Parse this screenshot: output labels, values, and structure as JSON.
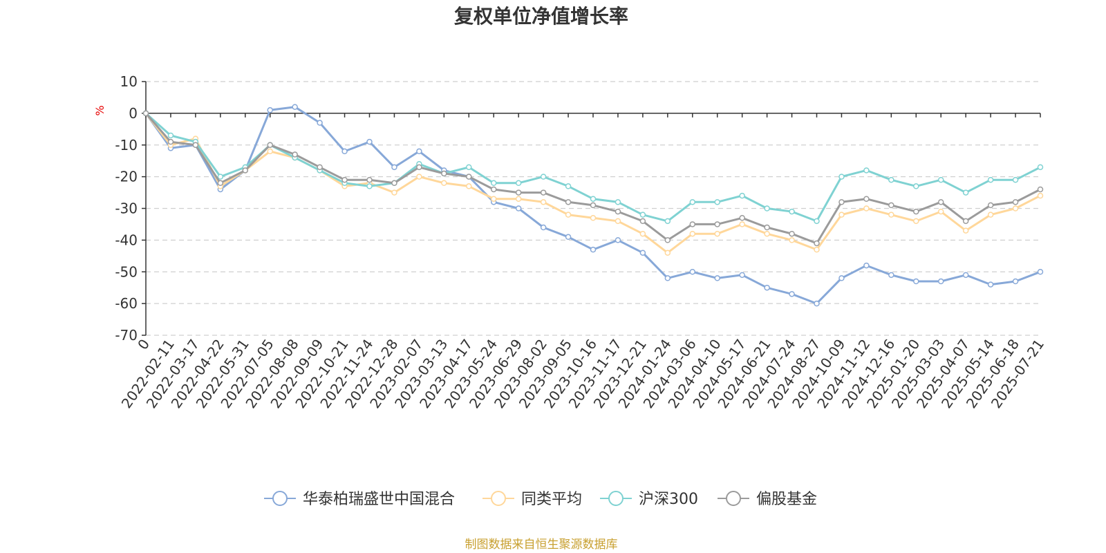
{
  "chart_data": {
    "type": "line",
    "title": "复权单位净值增长率",
    "y_unit": "%",
    "ylim": [
      -70,
      10
    ],
    "y_ticks": [
      10,
      0,
      -10,
      -20,
      -30,
      -40,
      -50,
      -60,
      -70
    ],
    "grid": "horizontal dashed",
    "legend_position": "bottom",
    "x_labels": [
      "0",
      "2022-02-11",
      "2022-03-17",
      "2022-04-22",
      "2022-05-31",
      "2022-07-05",
      "2022-08-08",
      "2022-09-09",
      "2022-10-21",
      "2022-11-24",
      "2022-12-28",
      "2023-02-07",
      "2023-03-13",
      "2023-04-17",
      "2023-05-24",
      "2023-06-29",
      "2023-08-02",
      "2023-09-05",
      "2023-10-16",
      "2023-11-17",
      "2023-12-21",
      "2024-01-24",
      "2024-03-06",
      "2024-04-10",
      "2024-05-17",
      "2024-06-21",
      "2024-07-24",
      "2024-08-27",
      "2024-10-09",
      "2024-11-12",
      "2024-12-16",
      "2025-01-20",
      "2025-03-03",
      "2025-04-07",
      "2025-05-14",
      "2025-06-18",
      "2025-07-21"
    ],
    "series": [
      {
        "name": "华泰柏瑞盛世中国混合",
        "color": "#87a8d8",
        "values": [
          0,
          -11,
          -10,
          -24,
          -18,
          1,
          2,
          -3,
          -12,
          -9,
          -17,
          -12,
          -18,
          -20,
          -28,
          -30,
          -36,
          -39,
          -43,
          -40,
          -44,
          -52,
          -50,
          -52,
          -51,
          -55,
          -57,
          -60,
          -52,
          -48,
          -51,
          -53,
          -53,
          -51,
          -54,
          -53,
          -50
        ]
      },
      {
        "name": "同类平均",
        "color": "#ffd79a",
        "values": [
          0,
          -10,
          -8,
          -23,
          -18,
          -12,
          -14,
          -18,
          -23,
          -22,
          -25,
          -20,
          -22,
          -23,
          -27,
          -27,
          -28,
          -32,
          -33,
          -34,
          -38,
          -44,
          -38,
          -38,
          -35,
          -38,
          -40,
          -43,
          -32,
          -30,
          -32,
          -34,
          -31,
          -37,
          -32,
          -30,
          -26
        ]
      },
      {
        "name": "沪深300",
        "color": "#7fd2d2",
        "values": [
          0,
          -7,
          -9,
          -20,
          -17,
          -10,
          -14,
          -18,
          -22,
          -23,
          -22,
          -16,
          -19,
          -17,
          -22,
          -22,
          -20,
          -23,
          -27,
          -28,
          -32,
          -34,
          -28,
          -28,
          -26,
          -30,
          -31,
          -34,
          -20,
          -18,
          -21,
          -23,
          -21,
          -25,
          -21,
          -21,
          -17
        ]
      },
      {
        "name": "偏股基金",
        "color": "#9b9b9b",
        "values": [
          0,
          -9,
          -10,
          -22,
          -18,
          -10,
          -13,
          -17,
          -21,
          -21,
          -22,
          -17,
          -19,
          -20,
          -24,
          -25,
          -25,
          -28,
          -29,
          -31,
          -34,
          -40,
          -35,
          -35,
          -33,
          -36,
          -38,
          -41,
          -28,
          -27,
          -29,
          -31,
          -28,
          -34,
          -29,
          -28,
          -24
        ]
      }
    ]
  },
  "source_note": "制图数据来自恒生聚源数据库"
}
